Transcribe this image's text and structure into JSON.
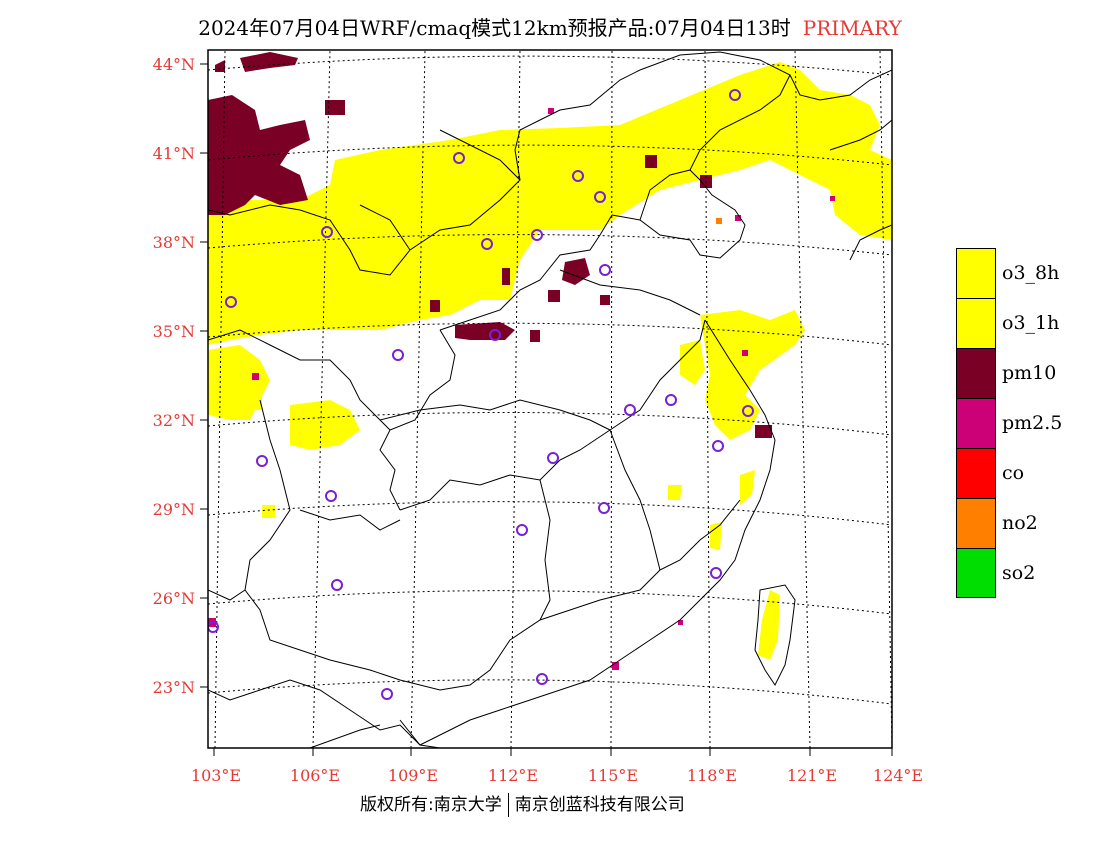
{
  "title": {
    "main": "2024年07月04日WRF/cmaq模式12km预报产品:07月04日13时",
    "tag": "PRIMARY"
  },
  "map": {
    "lat_labels": [
      "44°N",
      "41°N",
      "38°N",
      "35°N",
      "32°N",
      "29°N",
      "26°N",
      "23°N"
    ],
    "lon_labels": [
      "103°E",
      "106°E",
      "109°E",
      "112°E",
      "115°E",
      "118°E",
      "121°E",
      "124°E"
    ]
  },
  "legend": {
    "items": [
      {
        "label": "o3_8h",
        "color": "#ffff00"
      },
      {
        "label": "o3_1h",
        "color": "#ffff00"
      },
      {
        "label": "pm10",
        "color": "#7b0026"
      },
      {
        "label": "pm2.5",
        "color": "#cc0077"
      },
      {
        "label": "co",
        "color": "#ff0000"
      },
      {
        "label": "no2",
        "color": "#ff8000"
      },
      {
        "label": "so2",
        "color": "#00dd00"
      }
    ]
  },
  "footer": {
    "left": "版权所有:南京大学",
    "right": "南京创蓝科技有限公司"
  }
}
